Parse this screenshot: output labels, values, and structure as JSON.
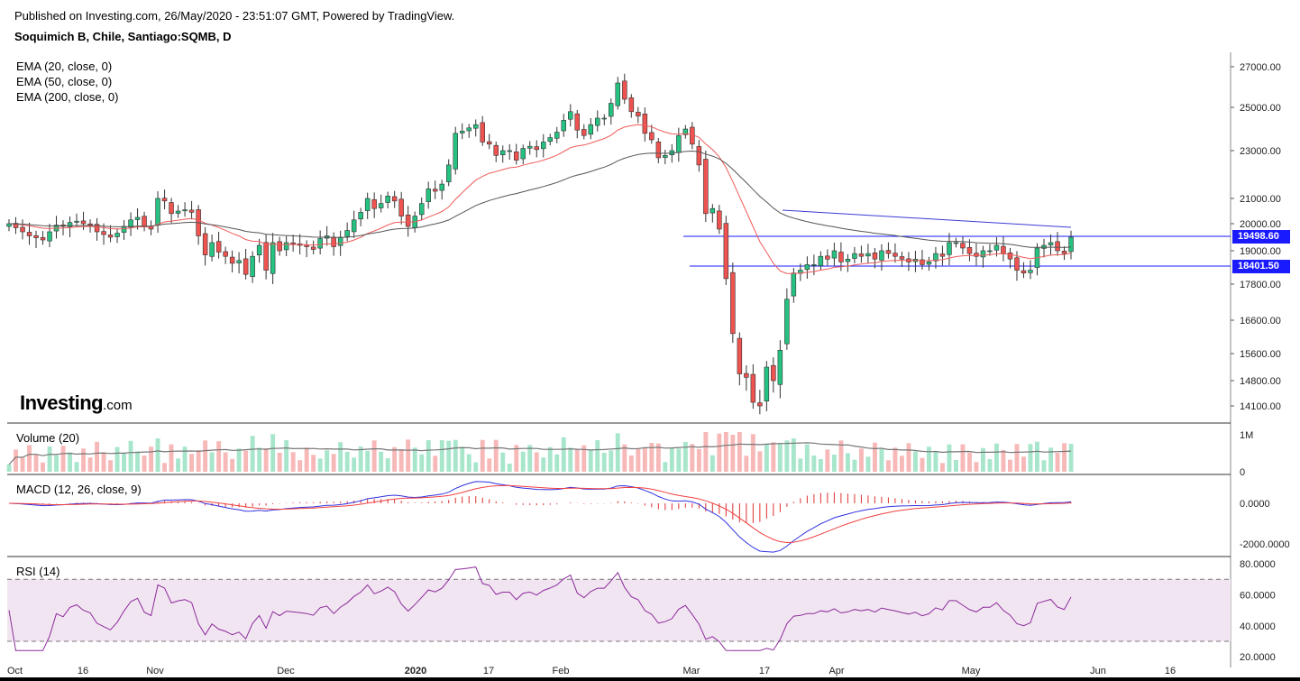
{
  "header": {
    "published": "Published on Investing.com, 26/May/2020 - 23:51:07 GMT, Powered by TradingView.",
    "symbol": "Soquimich B, Chile, Santiago:SQMB, D"
  },
  "logo": {
    "brand": "Investing",
    "suffix": ".com"
  },
  "panes": {
    "price": {
      "legend": [
        "EMA (20, close, 0)",
        "EMA (50, close, 0)",
        "EMA (200, close, 0)"
      ]
    },
    "volume": {
      "label": "Volume (20)"
    },
    "macd": {
      "label": "MACD (12, 26, close, 9)"
    },
    "rsi": {
      "label": "RSI (14)"
    }
  },
  "price_tags": {
    "upper": "19498.60",
    "lower": "18401.50"
  },
  "colors": {
    "up": "#26c281",
    "down": "#ef5350",
    "ema20": "#f05a5a",
    "ema50": "#555555",
    "ema200": "#3b3bd6",
    "hline": "#1a1aff",
    "macd": "#3030e0",
    "signal": "#f04040",
    "rsi": "#8b2a9a",
    "rsi_band": "#f2e5f2",
    "vol_up": "#a8e6cc",
    "vol_down": "#f7b8b8"
  },
  "chart_data": [
    {
      "type": "candlestick",
      "title": "Soquimich B, Chile, Santiago:SQMB, D",
      "price_axis_ticks": [
        "27000.00",
        "25000.00",
        "23000.00",
        "21000.00",
        "20000.00",
        "19000.00",
        "17800.00",
        "16600.00",
        "15600.00",
        "14800.00",
        "14100.00"
      ],
      "time_axis_ticks": [
        "Oct",
        "16",
        "Nov",
        "Dec",
        "2020",
        "17",
        "Feb",
        "Mar",
        "17",
        "Apr",
        "May",
        "Jun",
        "16"
      ],
      "closes": [
        20000,
        19850,
        19700,
        19550,
        19480,
        19400,
        19700,
        19950,
        19900,
        20050,
        20100,
        20000,
        19950,
        19700,
        19600,
        19500,
        19650,
        19900,
        20150,
        20250,
        19900,
        19800,
        21000,
        20900,
        20400,
        20500,
        20550,
        20450,
        19550,
        18850,
        19300,
        18950,
        18800,
        18550,
        18650,
        18150,
        18800,
        19200,
        18300,
        19300,
        19000,
        19300,
        19250,
        19200,
        19150,
        19050,
        19450,
        19550,
        19150,
        19500,
        19750,
        20150,
        20450,
        21000,
        20600,
        20800,
        21100,
        20900,
        20300,
        19900,
        20300,
        20800,
        21400,
        21300,
        21600,
        22400,
        23800,
        23900,
        24050,
        24200,
        23400,
        23300,
        22800,
        23000,
        23000,
        22600,
        23100,
        23200,
        23050,
        23400,
        23600,
        23850,
        24400,
        24800,
        23950,
        23700,
        24200,
        24500,
        24500,
        25200,
        26200,
        25400,
        24800,
        24600,
        23800,
        23500,
        22700,
        22800,
        23000,
        23700,
        24000,
        23300,
        22400,
        20400,
        20600,
        19800,
        18000,
        16200,
        15000,
        14900,
        14200,
        14100,
        15200,
        14800,
        15700,
        17300,
        18200,
        18300,
        18500,
        18500,
        18800,
        18700,
        19000,
        18600,
        18700,
        18900,
        18800,
        18900,
        18700,
        19000,
        18900,
        18800,
        18700,
        18600,
        18700,
        18500,
        18600,
        18900,
        18800,
        19300,
        19300,
        19100,
        18900,
        18800,
        19000,
        19000,
        19200,
        18900,
        18700,
        18300,
        18200,
        18300,
        19100,
        19200,
        19300,
        19000,
        18900,
        19500
      ]
    },
    {
      "type": "bar",
      "title": "Volume (20)",
      "y_ticks": [
        "1M",
        "0"
      ]
    },
    {
      "type": "line",
      "title": "MACD (12, 26, close, 9)",
      "y_ticks": [
        "0.0000",
        "-2000.0000"
      ]
    },
    {
      "type": "line",
      "title": "RSI (14)",
      "y_ticks": [
        "80.0000",
        "60.0000",
        "40.0000",
        "20.0000"
      ],
      "bands": [
        70,
        30
      ]
    }
  ]
}
